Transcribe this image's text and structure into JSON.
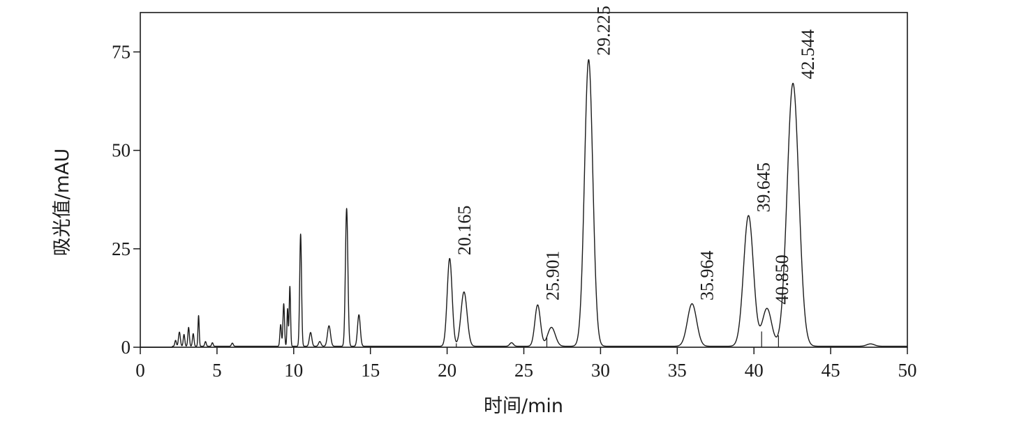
{
  "chart_data": {
    "type": "line",
    "title": "",
    "xlabel": "时间/min",
    "ylabel": "吸光值/mAU",
    "xlim": [
      0,
      50
    ],
    "ylim": [
      0,
      85
    ],
    "xticks": [
      0,
      5,
      10,
      15,
      20,
      25,
      30,
      35,
      40,
      45,
      50
    ],
    "yticks": [
      0,
      25,
      50,
      75
    ],
    "grid": false,
    "legend": "none",
    "line_color": "#1a1a1a",
    "peak_labels": [
      {
        "text": "20.165",
        "x": 20.165,
        "y": 22.3
      },
      {
        "text": "25.901",
        "x": 25.901,
        "y": 10.8
      },
      {
        "text": "29.225",
        "x": 29.225,
        "y": 73.0
      },
      {
        "text": "35.964",
        "x": 35.964,
        "y": 10.8
      },
      {
        "text": "39.645",
        "x": 39.645,
        "y": 33.2
      },
      {
        "text": "40.850",
        "x": 40.85,
        "y": 9.8
      },
      {
        "text": "42.544",
        "x": 42.544,
        "y": 67.0
      }
    ],
    "peaks": [
      {
        "x": 2.3,
        "y": 1.5,
        "w": 0.05
      },
      {
        "x": 2.55,
        "y": 3.6,
        "w": 0.06
      },
      {
        "x": 2.85,
        "y": 3.0,
        "w": 0.05
      },
      {
        "x": 3.15,
        "y": 4.8,
        "w": 0.05
      },
      {
        "x": 3.45,
        "y": 3.2,
        "w": 0.05
      },
      {
        "x": 3.8,
        "y": 7.8,
        "w": 0.04
      },
      {
        "x": 4.25,
        "y": 1.2,
        "w": 0.05
      },
      {
        "x": 4.7,
        "y": 0.9,
        "w": 0.05
      },
      {
        "x": 6.0,
        "y": 0.8,
        "w": 0.06
      },
      {
        "x": 9.15,
        "y": 5.5,
        "w": 0.05
      },
      {
        "x": 9.35,
        "y": 10.8,
        "w": 0.05
      },
      {
        "x": 9.6,
        "y": 9.5,
        "w": 0.04
      },
      {
        "x": 9.75,
        "y": 15.2,
        "w": 0.045
      },
      {
        "x": 10.45,
        "y": 28.5,
        "w": 0.06
      },
      {
        "x": 11.1,
        "y": 3.5,
        "w": 0.08
      },
      {
        "x": 11.7,
        "y": 1.2,
        "w": 0.08
      },
      {
        "x": 12.3,
        "y": 5.2,
        "w": 0.1
      },
      {
        "x": 13.45,
        "y": 35.0,
        "w": 0.08
      },
      {
        "x": 14.25,
        "y": 8.0,
        "w": 0.09
      },
      {
        "x": 20.165,
        "y": 22.3,
        "w": 0.16
      },
      {
        "x": 21.1,
        "y": 13.8,
        "w": 0.2
      },
      {
        "x": 24.2,
        "y": 0.9,
        "w": 0.12
      },
      {
        "x": 25.901,
        "y": 10.5,
        "w": 0.18
      },
      {
        "x": 26.8,
        "y": 4.8,
        "w": 0.25
      },
      {
        "x": 29.225,
        "y": 72.8,
        "w": 0.27
      },
      {
        "x": 35.964,
        "y": 10.8,
        "w": 0.3
      },
      {
        "x": 39.645,
        "y": 33.2,
        "w": 0.32
      },
      {
        "x": 40.85,
        "y": 9.6,
        "w": 0.3
      },
      {
        "x": 42.544,
        "y": 66.8,
        "w": 0.38
      },
      {
        "x": 47.6,
        "y": 0.6,
        "w": 0.25
      }
    ]
  }
}
